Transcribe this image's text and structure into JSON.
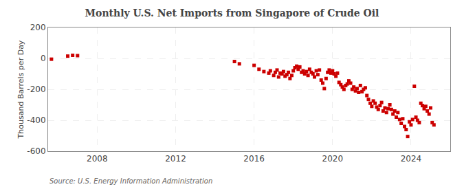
{
  "chart_data": {
    "type": "scatter",
    "title": "Monthly U.S. Net Imports from Singapore of Crude Oil",
    "ylabel": "Thousand Barrels per Day",
    "annotations": [
      "Source: U.S. Energy Information Administration"
    ],
    "color": "#cc0000",
    "marker": "square",
    "grid": true,
    "xlim": [
      2005.5,
      2026.0
    ],
    "xticks": [
      2008,
      2012,
      2016,
      2020,
      2024
    ],
    "ylim": [
      -600,
      200
    ],
    "yticks": [
      -600,
      -400,
      -200,
      0,
      200
    ],
    "x": [
      2005.67,
      2006.5,
      2006.75,
      2007.0,
      2015.0,
      2015.25,
      2016.0,
      2016.25,
      2016.5,
      2016.75,
      2016.83,
      2017.0,
      2017.08,
      2017.17,
      2017.25,
      2017.33,
      2017.42,
      2017.5,
      2017.58,
      2017.67,
      2017.75,
      2017.83,
      2017.92,
      2018.0,
      2018.08,
      2018.17,
      2018.25,
      2018.33,
      2018.42,
      2018.5,
      2018.58,
      2018.67,
      2018.75,
      2018.83,
      2018.92,
      2019.0,
      2019.08,
      2019.17,
      2019.25,
      2019.33,
      2019.42,
      2019.5,
      2019.58,
      2019.67,
      2019.75,
      2019.83,
      2019.92,
      2020.0,
      2020.08,
      2020.17,
      2020.25,
      2020.33,
      2020.42,
      2020.5,
      2020.58,
      2020.67,
      2020.75,
      2020.83,
      2020.92,
      2021.0,
      2021.08,
      2021.17,
      2021.25,
      2021.33,
      2021.42,
      2021.5,
      2021.58,
      2021.67,
      2021.75,
      2021.83,
      2021.92,
      2022.0,
      2022.08,
      2022.17,
      2022.25,
      2022.33,
      2022.42,
      2022.5,
      2022.58,
      2022.67,
      2022.75,
      2022.83,
      2022.92,
      2023.0,
      2023.08,
      2023.17,
      2023.25,
      2023.33,
      2023.42,
      2023.5,
      2023.58,
      2023.67,
      2023.75,
      2023.83,
      2023.92,
      2024.0,
      2024.08,
      2024.17,
      2024.25,
      2024.33,
      2024.42,
      2024.5,
      2024.58,
      2024.67,
      2024.75,
      2024.83,
      2024.92,
      2025.0,
      2025.08,
      2025.17
    ],
    "values": [
      -5,
      15,
      20,
      18,
      -20,
      -35,
      -45,
      -70,
      -85,
      -95,
      -80,
      -110,
      -90,
      -75,
      -120,
      -95,
      -100,
      -85,
      -115,
      -105,
      -90,
      -130,
      -110,
      -80,
      -60,
      -50,
      -70,
      -55,
      -90,
      -80,
      -100,
      -85,
      -110,
      -70,
      -90,
      -100,
      -120,
      -80,
      -105,
      -75,
      -140,
      -160,
      -195,
      -130,
      -90,
      -75,
      -95,
      -80,
      -100,
      -115,
      -95,
      -155,
      -170,
      -185,
      -200,
      -175,
      -165,
      -145,
      -160,
      -200,
      -185,
      -210,
      -195,
      -220,
      -175,
      -215,
      -200,
      -190,
      -240,
      -265,
      -290,
      -310,
      -275,
      -290,
      -315,
      -330,
      -305,
      -285,
      -340,
      -320,
      -350,
      -325,
      -300,
      -330,
      -360,
      -340,
      -380,
      -350,
      -395,
      -420,
      -390,
      -440,
      -460,
      -505,
      -410,
      -430,
      -395,
      -180,
      -380,
      -400,
      -415,
      -290,
      -305,
      -325,
      -310,
      -340,
      -360,
      -320,
      -415,
      -430
    ]
  }
}
